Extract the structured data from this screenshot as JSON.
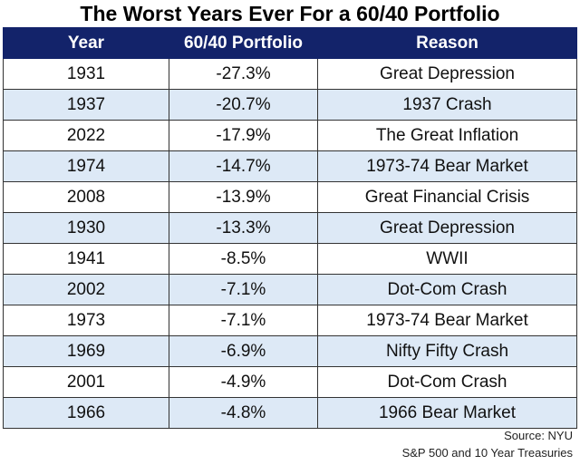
{
  "chart_data": {
    "type": "table",
    "title": "The Worst Years Ever For a 60/40 Portfolio",
    "columns": [
      "Year",
      "60/40 Portfolio",
      "Reason"
    ],
    "rows": [
      [
        "1931",
        "-27.3%",
        "Great Depression"
      ],
      [
        "1937",
        "-20.7%",
        "1937 Crash"
      ],
      [
        "2022",
        "-17.9%",
        "The Great Inflation"
      ],
      [
        "1974",
        "-14.7%",
        "1973-74 Bear Market"
      ],
      [
        "2008",
        "-13.9%",
        "Great Financial Crisis"
      ],
      [
        "1930",
        "-13.3%",
        "Great Depression"
      ],
      [
        "1941",
        "-8.5%",
        "WWII"
      ],
      [
        "2002",
        "-7.1%",
        "Dot-Com Crash"
      ],
      [
        "1973",
        "-7.1%",
        "1973-74 Bear Market"
      ],
      [
        "1969",
        "-6.9%",
        "Nifty Fifty Crash"
      ],
      [
        "2001",
        "-4.9%",
        "Dot-Com Crash"
      ],
      [
        "1966",
        "-4.8%",
        "1966 Bear Market"
      ]
    ],
    "source": "Source: NYU",
    "note": "S&P 500 and 10 Year Treasuries",
    "colors": {
      "header_bg": "#13236a",
      "header_text": "#ffffff",
      "alt_row": "#dde9f6"
    }
  }
}
